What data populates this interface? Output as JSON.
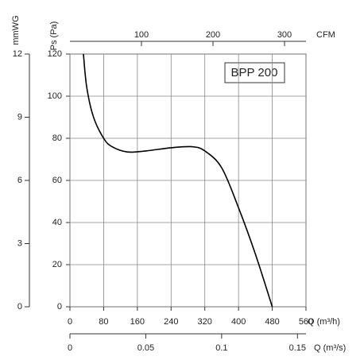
{
  "chart_data": {
    "type": "line",
    "annotation": "BPP 200",
    "xlabel": "Q (m³/h)",
    "ylabel": "Ps (Pa)",
    "x": [
      32,
      40,
      56,
      80,
      100,
      136,
      180,
      240,
      290,
      320,
      360,
      400,
      440,
      480
    ],
    "series": [
      {
        "color": "#000000",
        "values": [
          120,
          104,
          90,
          80,
          76,
          73.5,
          74,
          75.5,
          76,
          74,
          66,
          47,
          25,
          0
        ]
      }
    ],
    "xlim": [
      0,
      560
    ],
    "ylim": [
      0,
      120
    ],
    "xticks": [
      0,
      80,
      160,
      240,
      320,
      400,
      480,
      560
    ],
    "yticks": [
      0,
      20,
      40,
      60,
      80,
      100,
      120
    ],
    "grid": true,
    "top_axis": {
      "label": "CFM",
      "lim": [
        0,
        330
      ],
      "ticks": [
        100,
        200,
        300
      ]
    },
    "left_axis": {
      "label": "mmWG",
      "lim": [
        0,
        12
      ],
      "ticks": [
        0,
        3,
        6,
        9,
        12
      ]
    },
    "bottom_axis": {
      "label": "Q (m³/s)",
      "lim": [
        0,
        0.1556
      ],
      "ticks": [
        0,
        0.05,
        0.1,
        0.15
      ]
    }
  }
}
